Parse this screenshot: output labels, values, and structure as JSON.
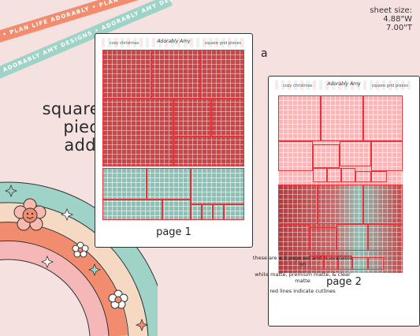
{
  "ribbons": {
    "orange": "• PLAN LIFE ADORABLY • PLAN LIFE ADORABLY • PLAN LIFE ADORABLY",
    "teal": "ADORABLY AMY DESIGNS • ADORABLY AMY DESIGNS • ADORABLY AMY DESIGNS"
  },
  "sheet_size": {
    "label": "sheet size:",
    "width": "4.88\"W",
    "height": "7.00\"T"
  },
  "title": {
    "line1": "square grid",
    "line2": "pieces",
    "line3": "addon"
  },
  "sheet1": {
    "header_left": "cozy christmas",
    "header_center": "Adorably Amy",
    "header_right": "square grid pieces",
    "label": "page 1"
  },
  "sheet2": {
    "header_left": "cozy christmas",
    "header_center": "Adorably Amy",
    "header_right": "square grid pieces",
    "label": "page 2"
  },
  "letter": "a",
  "note": {
    "line1": "these are a 2 page set and is available on",
    "line2": "white matte, premium matte, & clear matte",
    "line3": "red lines indicate cutlines"
  },
  "colors": {
    "background": "#f6e1e1",
    "cutline": "#e8333a",
    "red": "#c44749",
    "teal": "#8fbfb4",
    "pink": "#f7b7b9"
  }
}
